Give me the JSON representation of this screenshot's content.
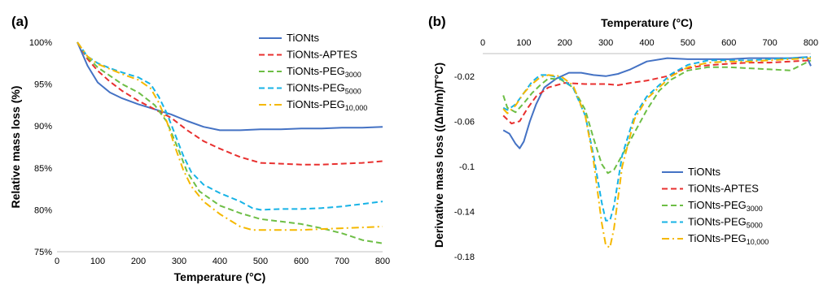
{
  "chart_data": [
    {
      "type": "line",
      "panel_label": "(a)",
      "xlabel": "Temperature (°C)",
      "ylabel": "Relative mass loss (%)",
      "xlim": [
        0,
        800
      ],
      "ylim": [
        75,
        100
      ],
      "x_ticks": [
        "0",
        "100",
        "200",
        "300",
        "400",
        "500",
        "600",
        "700",
        "800"
      ],
      "y_ticks": [
        "75%",
        "80%",
        "85%",
        "90%",
        "95%",
        "100%"
      ],
      "grid": false,
      "legend_position": "top-right",
      "series": [
        {
          "name": "TiONts",
          "name_main": "TiONts",
          "name_sub": "",
          "color": "#4472C4",
          "dash": "solid",
          "x": [
            50,
            75,
            100,
            130,
            160,
            200,
            240,
            280,
            320,
            360,
            400,
            450,
            500,
            550,
            600,
            650,
            700,
            750,
            800
          ],
          "y": [
            100,
            97.2,
            95.2,
            94.0,
            93.3,
            92.6,
            92.0,
            91.4,
            90.6,
            89.9,
            89.5,
            89.5,
            89.6,
            89.6,
            89.7,
            89.7,
            89.8,
            89.8,
            89.9
          ]
        },
        {
          "name": "TiONts-APTES",
          "name_main": "TiONts-APTES",
          "name_sub": "",
          "color": "#E8302F",
          "dash": "dashed",
          "x": [
            50,
            75,
            100,
            130,
            160,
            200,
            240,
            280,
            320,
            360,
            400,
            450,
            500,
            550,
            600,
            650,
            700,
            750,
            800
          ],
          "y": [
            100,
            98.0,
            96.6,
            95.3,
            94.2,
            93.0,
            92.0,
            91.0,
            89.5,
            88.2,
            87.3,
            86.3,
            85.6,
            85.5,
            85.4,
            85.4,
            85.5,
            85.6,
            85.8
          ]
        },
        {
          "name": "TiONts-PEG3000",
          "name_main": "TiONts-PEG",
          "name_sub": "3000",
          "color": "#6DBE45",
          "dash": "dashed",
          "x": [
            50,
            75,
            100,
            130,
            160,
            200,
            240,
            270,
            300,
            320,
            350,
            400,
            450,
            500,
            550,
            600,
            650,
            700,
            750,
            800
          ],
          "y": [
            100,
            98.2,
            97.0,
            96.0,
            95.0,
            94.0,
            92.5,
            90.5,
            87.0,
            84.5,
            82.2,
            80.5,
            79.6,
            78.9,
            78.6,
            78.3,
            77.8,
            77.2,
            76.4,
            76.0
          ]
        },
        {
          "name": "TiONts-PEG5000",
          "name_main": "TiONts-PEG",
          "name_sub": "5000",
          "color": "#17B3E6",
          "dash": "dashed",
          "x": [
            50,
            75,
            100,
            130,
            160,
            200,
            230,
            250,
            270,
            290,
            310,
            330,
            360,
            400,
            450,
            480,
            500,
            550,
            600,
            650,
            700,
            750,
            800
          ],
          "y": [
            100,
            98.3,
            97.5,
            96.9,
            96.4,
            95.8,
            95.0,
            93.5,
            91.5,
            89.0,
            86.5,
            84.5,
            83.0,
            82.0,
            81.0,
            80.2,
            80.0,
            80.1,
            80.1,
            80.2,
            80.4,
            80.7,
            81.0
          ]
        },
        {
          "name": "TiONts-PEG10,000",
          "name_main": "TiONts-PEG",
          "name_sub": "10,000",
          "color": "#F5B800",
          "dash": "dashdot",
          "x": [
            50,
            75,
            100,
            130,
            160,
            200,
            230,
            250,
            270,
            290,
            310,
            330,
            360,
            400,
            450,
            480,
            500,
            550,
            600,
            650,
            700,
            750,
            800
          ],
          "y": [
            100,
            98.3,
            97.4,
            96.8,
            96.2,
            95.5,
            94.5,
            92.8,
            90.5,
            87.5,
            84.8,
            82.8,
            81.0,
            79.5,
            78.0,
            77.6,
            77.6,
            77.6,
            77.6,
            77.7,
            77.8,
            77.9,
            78.0
          ]
        }
      ]
    },
    {
      "type": "line",
      "panel_label": "(b)",
      "xlabel": "Temperature (°C)",
      "ylabel": "Derivative mass loss ((Δm/m)/T°C)",
      "x_axis_position": "top",
      "xlim": [
        0,
        800
      ],
      "ylim": [
        -0.18,
        0.0
      ],
      "x_ticks": [
        "0",
        "100",
        "200",
        "300",
        "400",
        "500",
        "600",
        "700",
        "800"
      ],
      "y_ticks": [
        "-0.02",
        "-0.06",
        "-0.1",
        "-0.14",
        "-0.18"
      ],
      "grid": false,
      "legend_position": "bottom-right",
      "series": [
        {
          "name": "TiONts",
          "name_main": "TiONts",
          "name_sub": "",
          "color": "#4472C4",
          "dash": "solid",
          "x": [
            50,
            65,
            80,
            90,
            100,
            115,
            130,
            150,
            180,
            210,
            240,
            270,
            300,
            330,
            360,
            400,
            450,
            500,
            550,
            600,
            650,
            700,
            750,
            790,
            800
          ],
          "y": [
            -0.068,
            -0.071,
            -0.08,
            -0.084,
            -0.078,
            -0.06,
            -0.045,
            -0.03,
            -0.022,
            -0.017,
            -0.017,
            -0.019,
            -0.02,
            -0.018,
            -0.014,
            -0.007,
            -0.004,
            -0.005,
            -0.005,
            -0.005,
            -0.004,
            -0.004,
            -0.004,
            -0.003,
            -0.011
          ]
        },
        {
          "name": "TiONts-APTES",
          "name_main": "TiONts-APTES",
          "name_sub": "",
          "color": "#E8302F",
          "dash": "dashed",
          "x": [
            50,
            70,
            90,
            110,
            130,
            160,
            200,
            250,
            300,
            330,
            360,
            400,
            450,
            480,
            500,
            530,
            560,
            600,
            650,
            700,
            750,
            800
          ],
          "y": [
            -0.055,
            -0.062,
            -0.06,
            -0.048,
            -0.038,
            -0.03,
            -0.026,
            -0.027,
            -0.027,
            -0.028,
            -0.026,
            -0.024,
            -0.02,
            -0.015,
            -0.013,
            -0.011,
            -0.01,
            -0.009,
            -0.008,
            -0.008,
            -0.007,
            -0.006
          ]
        },
        {
          "name": "TiONts-PEG3000",
          "name_main": "TiONts-PEG",
          "name_sub": "3000",
          "color": "#6DBE45",
          "dash": "dashed",
          "x": [
            50,
            60,
            80,
            100,
            120,
            140,
            160,
            190,
            220,
            250,
            270,
            290,
            305,
            320,
            340,
            370,
            400,
            430,
            460,
            500,
            550,
            600,
            650,
            700,
            750,
            800
          ],
          "y": [
            -0.037,
            -0.048,
            -0.052,
            -0.044,
            -0.035,
            -0.028,
            -0.022,
            -0.023,
            -0.03,
            -0.05,
            -0.075,
            -0.098,
            -0.106,
            -0.103,
            -0.09,
            -0.07,
            -0.05,
            -0.033,
            -0.023,
            -0.015,
            -0.012,
            -0.012,
            -0.013,
            -0.014,
            -0.015,
            -0.006
          ]
        },
        {
          "name": "TiONts-PEG5000",
          "name_main": "TiONts-PEG",
          "name_sub": "5000",
          "color": "#17B3E6",
          "dash": "dashed",
          "x": [
            50,
            60,
            80,
            100,
            120,
            140,
            160,
            190,
            220,
            250,
            270,
            290,
            300,
            310,
            320,
            340,
            370,
            400,
            430,
            460,
            500,
            550,
            600,
            650,
            700,
            750,
            800
          ],
          "y": [
            -0.048,
            -0.05,
            -0.045,
            -0.035,
            -0.025,
            -0.019,
            -0.019,
            -0.022,
            -0.03,
            -0.055,
            -0.09,
            -0.132,
            -0.148,
            -0.148,
            -0.135,
            -0.09,
            -0.055,
            -0.038,
            -0.028,
            -0.018,
            -0.01,
            -0.006,
            -0.006,
            -0.006,
            -0.005,
            -0.004,
            -0.003
          ]
        },
        {
          "name": "TiONts-PEG10,000",
          "name_main": "TiONts-PEG",
          "name_sub": "10,000",
          "color": "#F5B800",
          "dash": "dashdot",
          "x": [
            50,
            60,
            80,
            100,
            120,
            140,
            160,
            190,
            220,
            250,
            270,
            290,
            300,
            310,
            320,
            340,
            370,
            400,
            430,
            460,
            500,
            550,
            600,
            650,
            700,
            750,
            800
          ],
          "y": [
            -0.049,
            -0.053,
            -0.046,
            -0.035,
            -0.027,
            -0.021,
            -0.019,
            -0.02,
            -0.028,
            -0.055,
            -0.095,
            -0.15,
            -0.17,
            -0.172,
            -0.155,
            -0.1,
            -0.058,
            -0.04,
            -0.03,
            -0.02,
            -0.012,
            -0.008,
            -0.007,
            -0.007,
            -0.006,
            -0.005,
            -0.004
          ]
        }
      ]
    }
  ]
}
